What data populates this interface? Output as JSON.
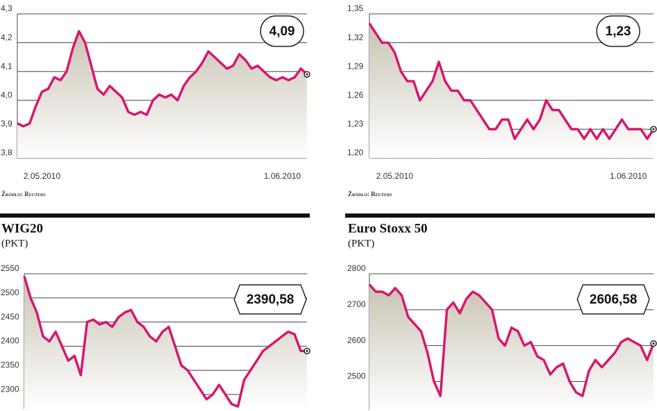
{
  "chart_data": [
    {
      "type": "line",
      "source": "Źródło: Reuters",
      "annotation": "4,09",
      "categories": [
        null,
        null,
        null,
        null,
        "2.05.2010",
        null,
        null,
        null,
        null,
        null,
        null,
        null,
        null,
        null,
        null,
        null,
        null,
        null,
        null,
        null,
        null,
        null,
        null,
        null,
        null,
        null,
        null,
        null,
        null,
        null,
        null,
        null,
        null,
        null,
        null,
        null,
        null,
        null,
        null,
        null,
        null,
        null,
        null,
        "1.06.2010",
        null,
        null,
        null,
        null
      ],
      "series": [
        {
          "color": "#d6176f",
          "values": [
            3.92,
            3.91,
            3.92,
            3.98,
            4.03,
            4.04,
            4.08,
            4.07,
            4.1,
            4.18,
            4.24,
            4.2,
            4.12,
            4.04,
            4.02,
            4.05,
            4.03,
            4.01,
            3.96,
            3.95,
            3.96,
            3.95,
            4.0,
            4.02,
            4.01,
            4.02,
            4.0,
            4.05,
            4.08,
            4.1,
            4.13,
            4.17,
            4.15,
            4.13,
            4.11,
            4.12,
            4.16,
            4.14,
            4.11,
            4.12,
            4.1,
            4.08,
            4.07,
            4.08,
            4.07,
            4.08,
            4.11,
            4.09
          ]
        }
      ],
      "ylim": [
        3.8,
        4.3
      ],
      "yticks": [
        {
          "value": 3.8,
          "label": "3,8"
        },
        {
          "value": 3.9,
          "label": "3,9"
        },
        {
          "value": 4.0,
          "label": "4,0"
        },
        {
          "value": 4.1,
          "label": "4,1"
        },
        {
          "value": 4.2,
          "label": "4,2"
        },
        {
          "value": 4.3,
          "label": "4,3"
        }
      ],
      "grid": true
    },
    {
      "type": "line",
      "source": "Źródło: Reuters",
      "annotation": "1,23",
      "categories": [
        null,
        null,
        null,
        null,
        "2.05.2010",
        null,
        null,
        null,
        null,
        null,
        null,
        null,
        null,
        null,
        null,
        null,
        null,
        null,
        null,
        null,
        null,
        null,
        null,
        null,
        null,
        null,
        null,
        null,
        null,
        null,
        null,
        null,
        null,
        null,
        null,
        null,
        null,
        null,
        null,
        null,
        null,
        "1.06.2010",
        null,
        null,
        null,
        null
      ],
      "series": [
        {
          "color": "#d6176f",
          "values": [
            1.34,
            1.33,
            1.32,
            1.32,
            1.31,
            1.29,
            1.28,
            1.28,
            1.26,
            1.27,
            1.28,
            1.3,
            1.28,
            1.27,
            1.27,
            1.26,
            1.26,
            1.25,
            1.24,
            1.23,
            1.23,
            1.24,
            1.24,
            1.22,
            1.23,
            1.24,
            1.23,
            1.24,
            1.26,
            1.25,
            1.25,
            1.24,
            1.23,
            1.23,
            1.22,
            1.23,
            1.22,
            1.23,
            1.22,
            1.23,
            1.24,
            1.23,
            1.23,
            1.23,
            1.22,
            1.23
          ]
        }
      ],
      "ylim": [
        1.2,
        1.35
      ],
      "yticks": [
        {
          "value": 1.2,
          "label": "1,20"
        },
        {
          "value": 1.23,
          "label": "1,23"
        },
        {
          "value": 1.26,
          "label": "1,26"
        },
        {
          "value": 1.29,
          "label": "1,29"
        },
        {
          "value": 1.32,
          "label": "1,32"
        },
        {
          "value": 1.35,
          "label": "1,35"
        }
      ],
      "grid": true
    },
    {
      "type": "line",
      "title": "WIG20",
      "subtitle": "(PKT)",
      "annotation": "2390,58",
      "series": [
        {
          "color": "#d6176f",
          "values": [
            2545,
            2500,
            2470,
            2420,
            2410,
            2430,
            2400,
            2370,
            2380,
            2340,
            2450,
            2455,
            2445,
            2450,
            2440,
            2460,
            2470,
            2475,
            2450,
            2440,
            2420,
            2410,
            2430,
            2440,
            2400,
            2360,
            2350,
            2330,
            2310,
            2290,
            2300,
            2320,
            2300,
            2280,
            2275,
            2330,
            2350,
            2370,
            2390,
            2400,
            2410,
            2420,
            2430,
            2425,
            2390,
            2390
          ]
        }
      ],
      "ylim": [
        2270,
        2550
      ],
      "yticks": [
        2300,
        2350,
        2400,
        2450,
        2500,
        2550
      ],
      "grid": true
    },
    {
      "type": "line",
      "title": "Euro Stoxx 50",
      "subtitle": "(PKT)",
      "annotation": "2606,58",
      "series": [
        {
          "color": "#d6176f",
          "values": [
            2770,
            2750,
            2750,
            2740,
            2760,
            2740,
            2680,
            2660,
            2640,
            2580,
            2500,
            2460,
            2700,
            2720,
            2690,
            2730,
            2750,
            2740,
            2720,
            2700,
            2620,
            2600,
            2650,
            2640,
            2600,
            2610,
            2570,
            2560,
            2520,
            2540,
            2550,
            2500,
            2470,
            2460,
            2530,
            2560,
            2540,
            2560,
            2580,
            2610,
            2620,
            2610,
            2600,
            2560,
            2606
          ]
        }
      ],
      "ylim": [
        2420,
        2800
      ],
      "yticks": [
        2500,
        2600,
        2700,
        2800
      ],
      "grid": true
    }
  ]
}
